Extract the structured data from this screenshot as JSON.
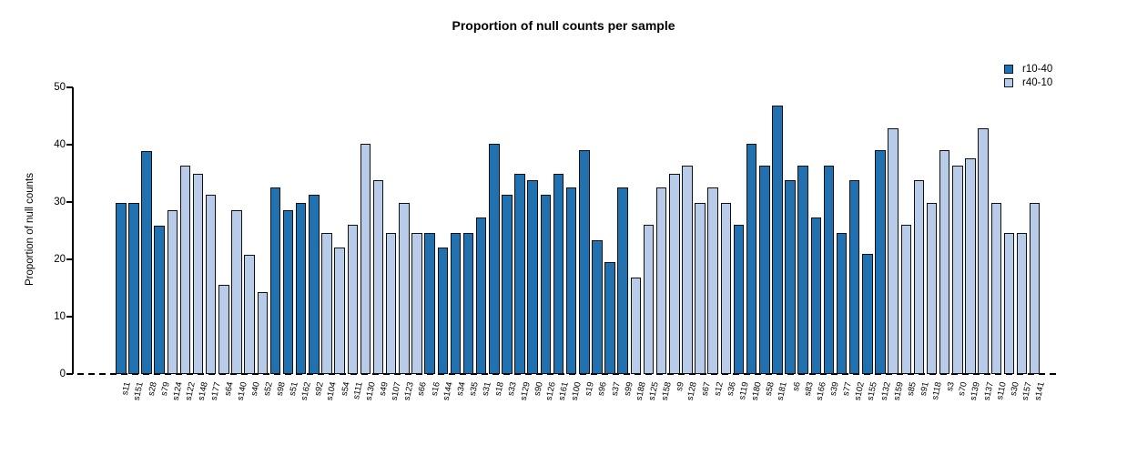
{
  "chart_data": {
    "type": "bar",
    "title": "Proportion of null counts per sample",
    "xlabel": "",
    "ylabel": "Proportion of null counts",
    "ylim": [
      0,
      50
    ],
    "yticks": [
      0,
      10,
      20,
      30,
      40,
      50
    ],
    "grid": false,
    "legend_position": "top-right",
    "baseline_style": "dashed-zero-line",
    "series": [
      {
        "name": "r10-40",
        "color": "#2171b0"
      },
      {
        "name": "r40-10",
        "color": "#b8cbe8"
      }
    ],
    "bars": [
      {
        "label": "s11",
        "value": 29.8,
        "series": "r10-40"
      },
      {
        "label": "s151",
        "value": 29.8,
        "series": "r10-40"
      },
      {
        "label": "s28",
        "value": 38.9,
        "series": "r10-40"
      },
      {
        "label": "s79",
        "value": 25.9,
        "series": "r10-40"
      },
      {
        "label": "s124",
        "value": 28.6,
        "series": "r40-10"
      },
      {
        "label": "s122",
        "value": 36.4,
        "series": "r40-10"
      },
      {
        "label": "s148",
        "value": 34.9,
        "series": "r40-10"
      },
      {
        "label": "s177",
        "value": 31.2,
        "series": "r40-10"
      },
      {
        "label": "s64",
        "value": 15.6,
        "series": "r40-10"
      },
      {
        "label": "s140",
        "value": 28.5,
        "series": "r40-10"
      },
      {
        "label": "s40",
        "value": 20.8,
        "series": "r40-10"
      },
      {
        "label": "s52",
        "value": 14.3,
        "series": "r40-10"
      },
      {
        "label": "s98",
        "value": 32.5,
        "series": "r10-40"
      },
      {
        "label": "s51",
        "value": 28.6,
        "series": "r10-40"
      },
      {
        "label": "s162",
        "value": 29.9,
        "series": "r10-40"
      },
      {
        "label": "s92",
        "value": 31.2,
        "series": "r10-40"
      },
      {
        "label": "s104",
        "value": 24.6,
        "series": "r40-10"
      },
      {
        "label": "s54",
        "value": 22.1,
        "series": "r40-10"
      },
      {
        "label": "s111",
        "value": 26.0,
        "series": "r40-10"
      },
      {
        "label": "s130",
        "value": 40.2,
        "series": "r40-10"
      },
      {
        "label": "s49",
        "value": 33.8,
        "series": "r40-10"
      },
      {
        "label": "s107",
        "value": 24.6,
        "series": "r40-10"
      },
      {
        "label": "s123",
        "value": 29.8,
        "series": "r40-10"
      },
      {
        "label": "s66",
        "value": 24.6,
        "series": "r40-10"
      },
      {
        "label": "s16",
        "value": 24.6,
        "series": "r10-40"
      },
      {
        "label": "s144",
        "value": 22.1,
        "series": "r10-40"
      },
      {
        "label": "s34",
        "value": 24.6,
        "series": "r10-40"
      },
      {
        "label": "s35",
        "value": 24.6,
        "series": "r10-40"
      },
      {
        "label": "s31",
        "value": 27.3,
        "series": "r10-40"
      },
      {
        "label": "s18",
        "value": 40.2,
        "series": "r10-40"
      },
      {
        "label": "s33",
        "value": 31.2,
        "series": "r10-40"
      },
      {
        "label": "s129",
        "value": 35.0,
        "series": "r10-40"
      },
      {
        "label": "s90",
        "value": 33.8,
        "series": "r10-40"
      },
      {
        "label": "s126",
        "value": 31.2,
        "series": "r10-40"
      },
      {
        "label": "s161",
        "value": 35.0,
        "series": "r10-40"
      },
      {
        "label": "s100",
        "value": 32.5,
        "series": "r10-40"
      },
      {
        "label": "s19",
        "value": 39.0,
        "series": "r10-40"
      },
      {
        "label": "s96",
        "value": 23.3,
        "series": "r10-40"
      },
      {
        "label": "s37",
        "value": 19.6,
        "series": "r10-40"
      },
      {
        "label": "s99",
        "value": 32.5,
        "series": "r10-40"
      },
      {
        "label": "s188",
        "value": 16.9,
        "series": "r40-10"
      },
      {
        "label": "s125",
        "value": 26.0,
        "series": "r40-10"
      },
      {
        "label": "s158",
        "value": 32.5,
        "series": "r40-10"
      },
      {
        "label": "s9",
        "value": 35.0,
        "series": "r40-10"
      },
      {
        "label": "s128",
        "value": 36.4,
        "series": "r40-10"
      },
      {
        "label": "s67",
        "value": 29.9,
        "series": "r40-10"
      },
      {
        "label": "s12",
        "value": 32.5,
        "series": "r40-10"
      },
      {
        "label": "s36",
        "value": 29.8,
        "series": "r40-10"
      },
      {
        "label": "s119",
        "value": 26.0,
        "series": "r10-40"
      },
      {
        "label": "s180",
        "value": 40.2,
        "series": "r10-40"
      },
      {
        "label": "s58",
        "value": 36.4,
        "series": "r10-40"
      },
      {
        "label": "s181",
        "value": 46.8,
        "series": "r10-40"
      },
      {
        "label": "s6",
        "value": 33.8,
        "series": "r10-40"
      },
      {
        "label": "s83",
        "value": 36.4,
        "series": "r10-40"
      },
      {
        "label": "s166",
        "value": 27.3,
        "series": "r10-40"
      },
      {
        "label": "s39",
        "value": 36.4,
        "series": "r10-40"
      },
      {
        "label": "s77",
        "value": 24.6,
        "series": "r10-40"
      },
      {
        "label": "s102",
        "value": 33.8,
        "series": "r10-40"
      },
      {
        "label": "s155",
        "value": 20.9,
        "series": "r10-40"
      },
      {
        "label": "s132",
        "value": 39.0,
        "series": "r10-40"
      },
      {
        "label": "s159",
        "value": 42.8,
        "series": "r40-10"
      },
      {
        "label": "s85",
        "value": 26.0,
        "series": "r40-10"
      },
      {
        "label": "s91",
        "value": 33.8,
        "series": "r40-10"
      },
      {
        "label": "s118",
        "value": 29.9,
        "series": "r40-10"
      },
      {
        "label": "s3",
        "value": 39.0,
        "series": "r40-10"
      },
      {
        "label": "s70",
        "value": 36.4,
        "series": "r40-10"
      },
      {
        "label": "s139",
        "value": 37.6,
        "series": "r40-10"
      },
      {
        "label": "s137",
        "value": 42.8,
        "series": "r40-10"
      },
      {
        "label": "s110",
        "value": 29.9,
        "series": "r40-10"
      },
      {
        "label": "s30",
        "value": 24.6,
        "series": "r40-10"
      },
      {
        "label": "s157",
        "value": 24.6,
        "series": "r40-10"
      },
      {
        "label": "s141",
        "value": 29.9,
        "series": "r40-10"
      }
    ]
  }
}
